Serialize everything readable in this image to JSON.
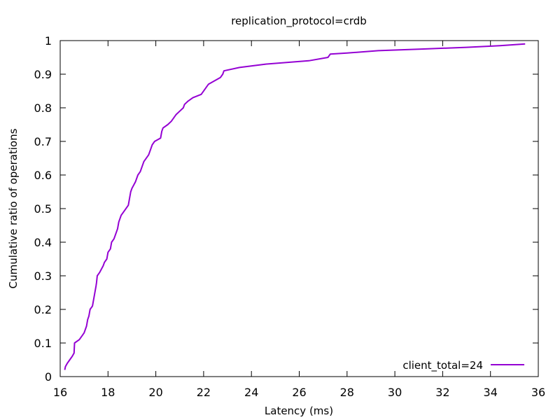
{
  "chart_data": {
    "type": "line",
    "title": "replication_protocol=crdb",
    "xlabel": "Latency (ms)",
    "ylabel": "Cumulative ratio of operations",
    "xlim": [
      16,
      36
    ],
    "ylim": [
      0,
      1
    ],
    "x_ticks": [
      16,
      18,
      20,
      22,
      24,
      26,
      28,
      30,
      32,
      34,
      36
    ],
    "y_ticks": [
      0,
      0.1,
      0.2,
      0.3,
      0.4,
      0.5,
      0.6,
      0.7,
      0.8,
      0.9,
      1
    ],
    "x_tick_labels": [
      "16",
      "18",
      "20",
      "22",
      "24",
      "26",
      "28",
      "30",
      "32",
      "34",
      "36"
    ],
    "y_tick_labels": [
      "0",
      "0.1",
      "0.2",
      "0.3",
      "0.4",
      "0.5",
      "0.6",
      "0.7",
      "0.8",
      "0.9",
      "1"
    ],
    "grid": false,
    "legend_position": "bottom-right",
    "series": [
      {
        "name": "client_total=24",
        "color": "#9400d3",
        "points": [
          [
            16.19,
            0.02
          ],
          [
            16.22,
            0.03
          ],
          [
            16.3,
            0.04
          ],
          [
            16.4,
            0.05
          ],
          [
            16.5,
            0.06
          ],
          [
            16.58,
            0.07
          ],
          [
            16.6,
            0.1
          ],
          [
            16.8,
            0.11
          ],
          [
            16.9,
            0.12
          ],
          [
            17.0,
            0.13
          ],
          [
            17.1,
            0.15
          ],
          [
            17.15,
            0.17
          ],
          [
            17.2,
            0.18
          ],
          [
            17.25,
            0.2
          ],
          [
            17.35,
            0.21
          ],
          [
            17.4,
            0.23
          ],
          [
            17.45,
            0.25
          ],
          [
            17.5,
            0.27
          ],
          [
            17.52,
            0.28
          ],
          [
            17.55,
            0.3
          ],
          [
            17.65,
            0.31
          ],
          [
            17.8,
            0.33
          ],
          [
            17.85,
            0.34
          ],
          [
            17.95,
            0.35
          ],
          [
            18.0,
            0.37
          ],
          [
            18.1,
            0.38
          ],
          [
            18.15,
            0.4
          ],
          [
            18.25,
            0.41
          ],
          [
            18.3,
            0.42
          ],
          [
            18.4,
            0.44
          ],
          [
            18.45,
            0.46
          ],
          [
            18.55,
            0.48
          ],
          [
            18.65,
            0.49
          ],
          [
            18.85,
            0.51
          ],
          [
            18.9,
            0.53
          ],
          [
            18.95,
            0.55
          ],
          [
            19.0,
            0.56
          ],
          [
            19.15,
            0.58
          ],
          [
            19.25,
            0.6
          ],
          [
            19.35,
            0.61
          ],
          [
            19.45,
            0.63
          ],
          [
            19.5,
            0.64
          ],
          [
            19.7,
            0.66
          ],
          [
            19.75,
            0.67
          ],
          [
            19.85,
            0.69
          ],
          [
            19.95,
            0.7
          ],
          [
            20.2,
            0.71
          ],
          [
            20.25,
            0.73
          ],
          [
            20.3,
            0.74
          ],
          [
            20.5,
            0.75
          ],
          [
            20.65,
            0.76
          ],
          [
            20.85,
            0.78
          ],
          [
            21.0,
            0.79
          ],
          [
            21.15,
            0.8
          ],
          [
            21.2,
            0.81
          ],
          [
            21.35,
            0.82
          ],
          [
            21.55,
            0.83
          ],
          [
            21.9,
            0.84
          ],
          [
            22.1,
            0.86
          ],
          [
            22.2,
            0.87
          ],
          [
            22.7,
            0.89
          ],
          [
            22.8,
            0.9
          ],
          [
            22.85,
            0.91
          ],
          [
            23.5,
            0.92
          ],
          [
            24.6,
            0.93
          ],
          [
            26.4,
            0.94
          ],
          [
            27.2,
            0.95
          ],
          [
            27.3,
            0.96
          ],
          [
            28.0,
            0.963
          ],
          [
            29.3,
            0.97
          ],
          [
            31.2,
            0.975
          ],
          [
            33.0,
            0.98
          ],
          [
            34.4,
            0.985
          ],
          [
            35.45,
            0.99
          ]
        ]
      }
    ]
  }
}
